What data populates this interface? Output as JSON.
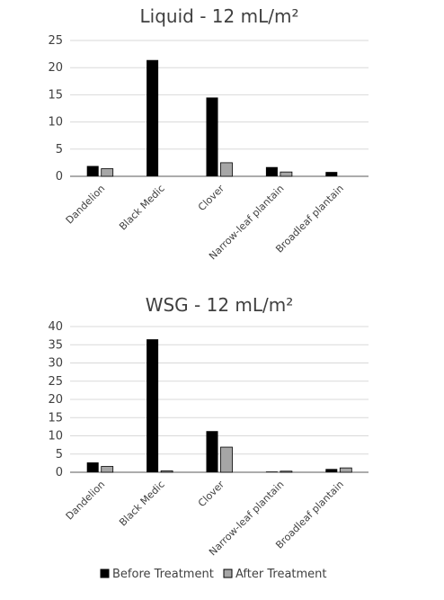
{
  "chart_data": [
    {
      "type": "bar",
      "title": "Liquid - 12 mL/m²",
      "xlabel": "",
      "ylabel": "",
      "ylim": [
        0,
        25
      ],
      "yticks": [
        0,
        5,
        10,
        15,
        20,
        25
      ],
      "grid": true,
      "categories": [
        "Dandelion",
        "Black Medic",
        "Clover",
        "Narrow-leaf plantain",
        "Broadleaf plantain"
      ],
      "series": [
        {
          "name": "Before Treatment",
          "color": "#000000",
          "values": [
            1.9,
            21.4,
            14.5,
            1.7,
            0.8
          ]
        },
        {
          "name": "After Treatment",
          "color": "#a6a6a6",
          "values": [
            1.4,
            0.0,
            2.5,
            0.8,
            0.0
          ]
        }
      ]
    },
    {
      "type": "bar",
      "title": "WSG - 12 mL/m²",
      "xlabel": "",
      "ylabel": "",
      "ylim": [
        0,
        40
      ],
      "yticks": [
        0,
        5,
        10,
        15,
        20,
        25,
        30,
        35,
        40
      ],
      "grid": true,
      "categories": [
        "Dandelion",
        "Black Medic",
        "Clover",
        "Narrow-leaf plantain",
        "Broadleaf plantain"
      ],
      "series": [
        {
          "name": "Before Treatment",
          "color": "#000000",
          "values": [
            2.7,
            36.5,
            11.3,
            0.2,
            0.9
          ]
        },
        {
          "name": "After Treatment",
          "color": "#a6a6a6",
          "values": [
            1.6,
            0.4,
            6.9,
            0.3,
            1.2
          ]
        }
      ]
    }
  ],
  "legend": {
    "placement": "bottom",
    "items": [
      {
        "label": "Before Treatment",
        "color": "#000000"
      },
      {
        "label": "After Treatment",
        "color": "#a6a6a6"
      }
    ]
  }
}
